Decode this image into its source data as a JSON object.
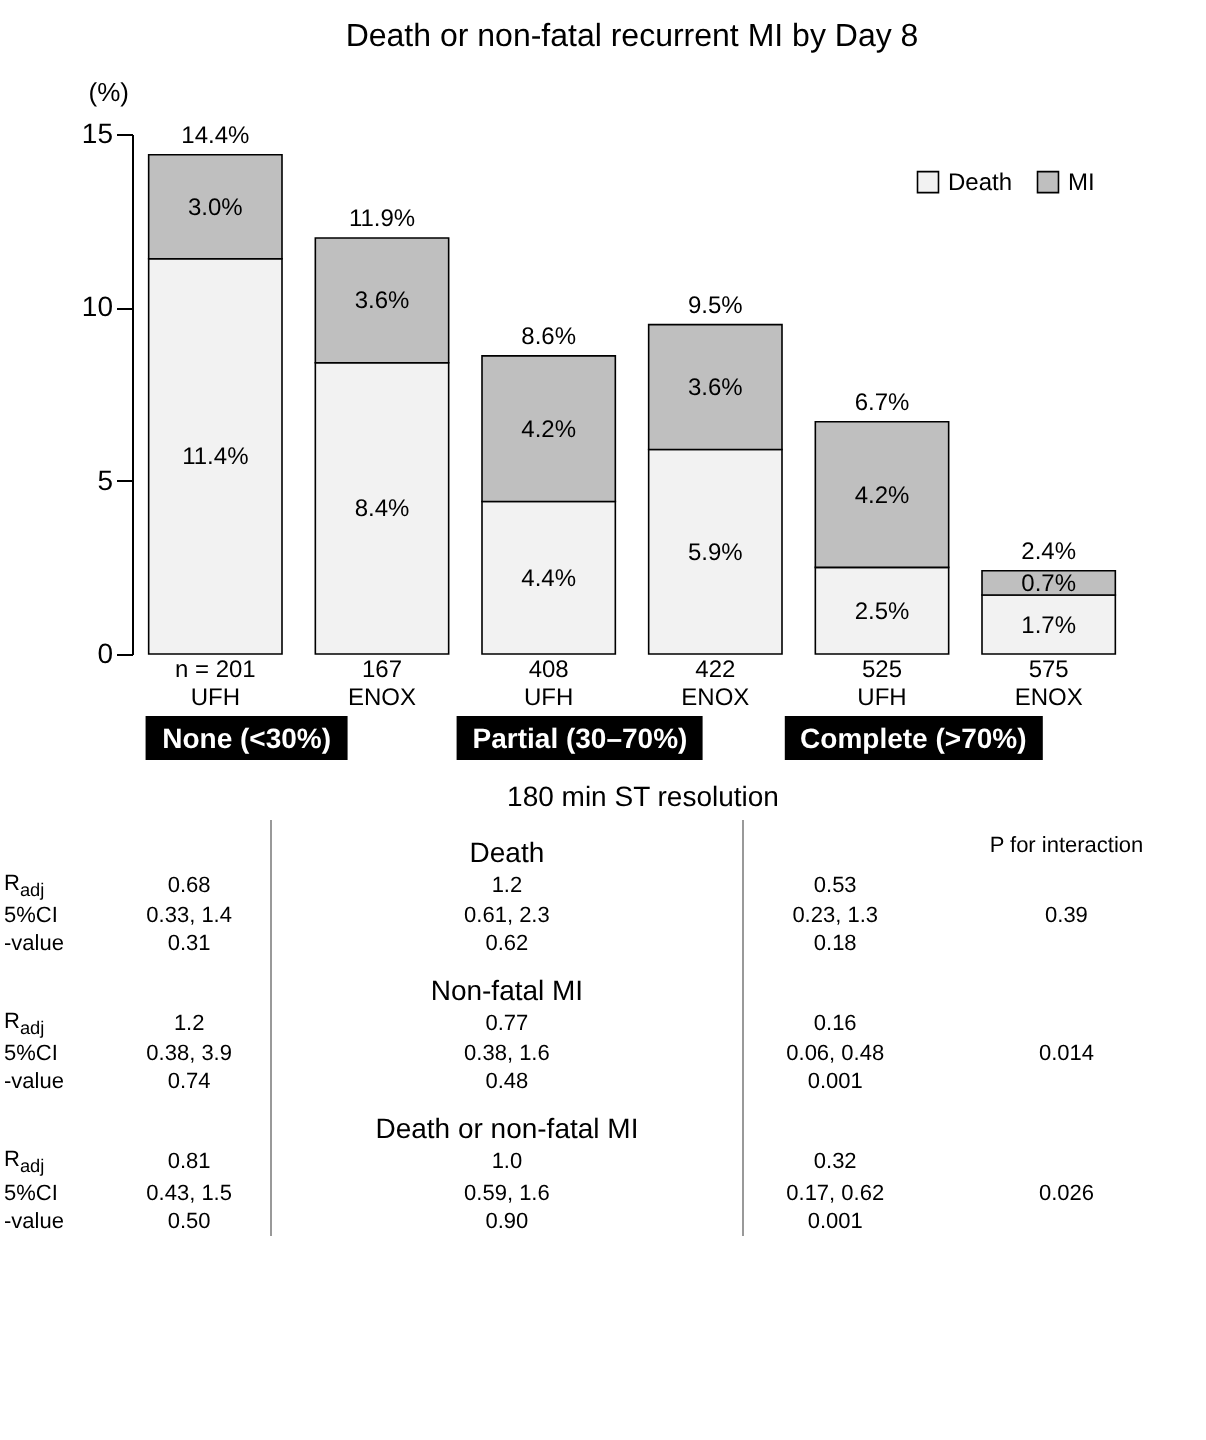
{
  "chart_data": {
    "type": "bar",
    "title": "Death or non-fatal recurrent MI by Day 8",
    "xlabel": "180 min ST resolution",
    "ylabel": "(%)",
    "categories": [
      "n = 201\nUFH",
      "167\nENOX",
      "408\nUFH",
      "422\nENOX",
      "525\nUFH",
      "575\nENOX"
    ],
    "stacked": true,
    "series": [
      {
        "name": "Death",
        "color": "#f2f2f2",
        "values": [
          11.4,
          8.4,
          4.4,
          5.9,
          2.5,
          1.7
        ],
        "value_labels": [
          "11.4%",
          "8.4%",
          "4.4%",
          "5.9%",
          "2.5%",
          "1.7%"
        ]
      },
      {
        "name": "MI",
        "color": "#bfbfbf",
        "values": [
          3.0,
          3.6,
          4.2,
          3.6,
          4.2,
          0.7
        ],
        "value_labels": [
          "3.0%",
          "3.6%",
          "4.2%",
          "3.6%",
          "4.2%",
          "0.7%"
        ]
      }
    ],
    "totals": [
      "14.4%",
      "11.9%",
      "8.6%",
      "9.5%",
      "6.7%",
      "2.4%"
    ],
    "ylim": [
      0,
      15
    ],
    "yticks": [
      0,
      5,
      10,
      15
    ],
    "grid": false,
    "legend": "top right",
    "annotations": [
      "None (<30%)",
      "Partial (30–70%)",
      "Complete (>70%)",
      "P for interaction",
      "Death",
      "R$_{adj}$",
      "0.68",
      "1.2",
      "0.53",
      "5%CI",
      "0.33, 1.4",
      "0.61, 2.3",
      "0.23, 1.3",
      "-value",
      "0.31",
      "0.62",
      "0.18",
      "0.39",
      "Non-fatal MI",
      "R$_{adj}$",
      "1.2",
      "0.77",
      "0.16",
      "5%CI",
      "0.38, 3.9",
      "0.38, 1.6",
      "0.06, 0.48",
      "-value",
      "0.74",
      "0.48",
      "0.001",
      "0.014",
      "Death or non-fatal MI",
      "R$_{adj}$",
      "0.81",
      "1.0",
      "0.32",
      "5%CI",
      "0.43, 1.5",
      "0.59, 1.6",
      "0.17, 0.62",
      "-value",
      "0.50",
      "0.90",
      "0.001",
      "0.026"
    ]
  }
}
